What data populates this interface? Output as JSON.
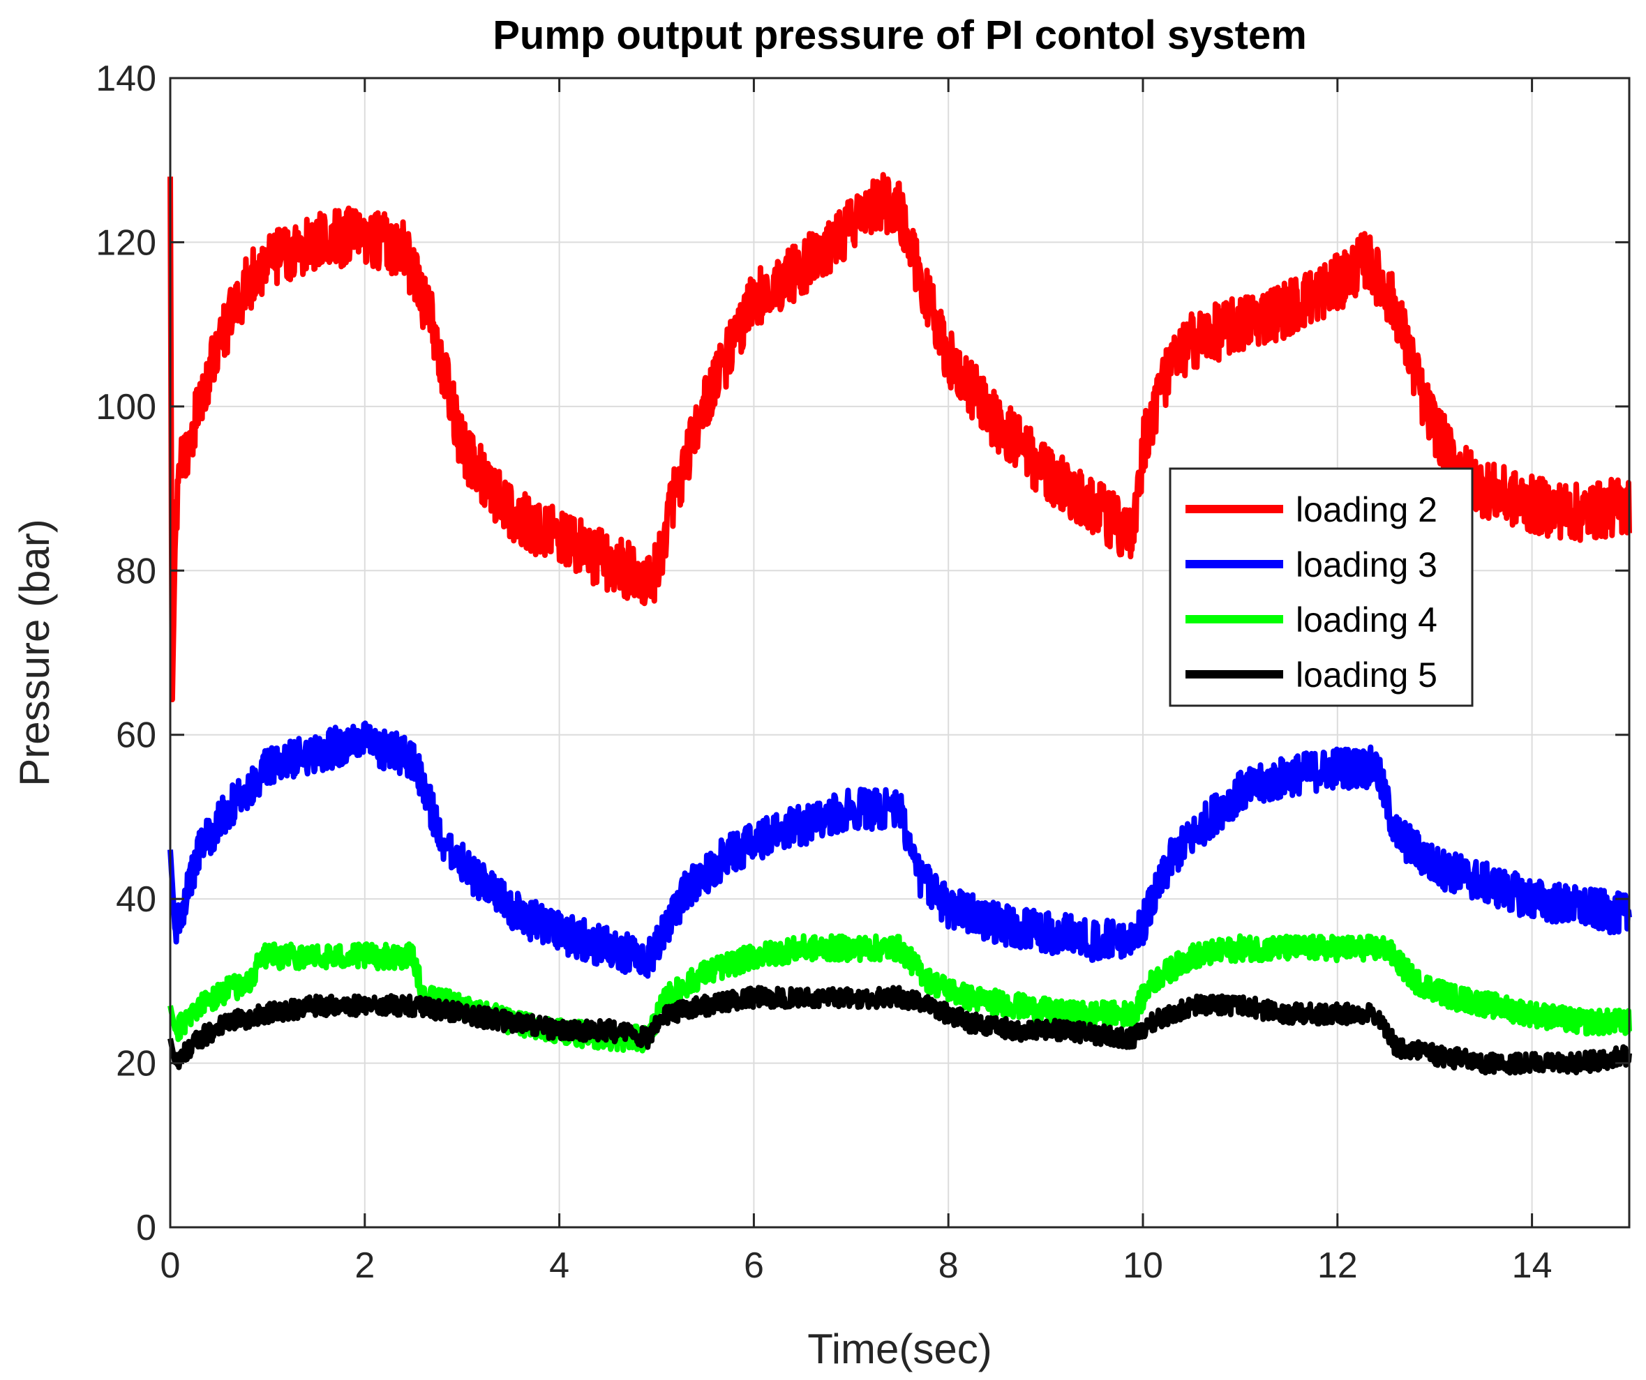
{
  "chart_data": {
    "type": "line",
    "title": "Pump output pressure of PI contol system",
    "xlabel": "Time(sec)",
    "ylabel": "Pressure (bar)",
    "xlim": [
      0,
      15
    ],
    "ylim": [
      0,
      140
    ],
    "xticks": [
      0,
      2,
      4,
      6,
      8,
      10,
      12,
      14
    ],
    "yticks": [
      0,
      20,
      40,
      60,
      80,
      100,
      120,
      140
    ],
    "xtick_labels": [
      "0",
      "2",
      "4",
      "6",
      "8",
      "10",
      "12",
      "14"
    ],
    "ytick_labels": [
      "0",
      "20",
      "40",
      "60",
      "80",
      "100",
      "120",
      "140"
    ],
    "grid": true,
    "legend_position": "right",
    "series": [
      {
        "name": "loading 2",
        "color": "#ff0000",
        "noise": 3.5,
        "x": [
          0,
          0.02,
          0.05,
          0.1,
          0.3,
          0.5,
          0.8,
          1.0,
          1.5,
          2.0,
          2.4,
          2.7,
          3.0,
          3.5,
          4.0,
          4.5,
          4.9,
          5.0,
          5.2,
          5.5,
          5.8,
          6.0,
          6.5,
          7.0,
          7.3,
          7.5,
          7.7,
          8.0,
          8.5,
          9.0,
          9.5,
          9.9,
          10.0,
          10.2,
          10.5,
          11.0,
          11.5,
          12.0,
          12.3,
          12.6,
          12.9,
          13.2,
          13.5,
          14.0,
          14.5,
          15.0
        ],
        "y": [
          128,
          64,
          84,
          92,
          100,
          108,
          115,
          118,
          120,
          121,
          119,
          110,
          95,
          87,
          84,
          81,
          79,
          80,
          90,
          100,
          108,
          113,
          117,
          122,
          125,
          124,
          116,
          106,
          98,
          92,
          88,
          84,
          95,
          103,
          108,
          110,
          112,
          115,
          118,
          112,
          100,
          93,
          90,
          88,
          87,
          88
        ]
      },
      {
        "name": "loading 3",
        "color": "#0000ff",
        "noise": 2.5,
        "x": [
          0,
          0.05,
          0.3,
          0.6,
          1.0,
          1.5,
          2.0,
          2.5,
          2.8,
          3.2,
          3.6,
          4.0,
          4.5,
          4.9,
          5.0,
          5.3,
          5.7,
          6.0,
          6.5,
          7.0,
          7.5,
          7.7,
          8.0,
          8.5,
          9.0,
          9.5,
          9.9,
          10.0,
          10.3,
          10.7,
          11.0,
          11.5,
          12.0,
          12.4,
          12.6,
          13.0,
          13.5,
          14.0,
          14.5,
          15.0
        ],
        "y": [
          46,
          36,
          46,
          51,
          56,
          58,
          59,
          57,
          47,
          42,
          38,
          36,
          34,
          33,
          34,
          41,
          45,
          47,
          49,
          51,
          51,
          43,
          39,
          37,
          36,
          35,
          35,
          37,
          45,
          50,
          53,
          55,
          56,
          56,
          48,
          44,
          42,
          40,
          39,
          38
        ]
      },
      {
        "name": "loading 4",
        "color": "#00ff00",
        "noise": 1.5,
        "x": [
          0,
          0.05,
          0.3,
          0.6,
          0.85,
          0.9,
          1.5,
          2.0,
          2.5,
          2.6,
          3.0,
          3.5,
          4.0,
          4.5,
          4.9,
          5.1,
          5.5,
          6.0,
          6.5,
          7.0,
          7.5,
          7.8,
          8.2,
          8.7,
          9.2,
          9.9,
          10.1,
          10.5,
          11.0,
          11.5,
          12.0,
          12.5,
          12.8,
          13.2,
          13.6,
          14.0,
          14.5,
          15.0
        ],
        "y": [
          27,
          24,
          27,
          29,
          30,
          33,
          33,
          33,
          33,
          28,
          27,
          25,
          24,
          23,
          23,
          28,
          31,
          33,
          34,
          34,
          34,
          30,
          28,
          27,
          26,
          26,
          30,
          33,
          34,
          34,
          34,
          34,
          30,
          28,
          27,
          26,
          25,
          25
        ]
      },
      {
        "name": "loading 5",
        "color": "#000000",
        "noise": 1.2,
        "x": [
          0,
          0.05,
          0.3,
          0.6,
          1.0,
          1.5,
          2.0,
          2.5,
          3.0,
          3.5,
          4.0,
          4.5,
          4.9,
          5.1,
          5.5,
          6.0,
          6.5,
          7.0,
          7.5,
          7.8,
          8.2,
          8.7,
          9.2,
          9.9,
          10.1,
          10.5,
          11.0,
          11.5,
          12.0,
          12.4,
          12.6,
          13.0,
          13.5,
          14.0,
          14.5,
          15.0
        ],
        "y": [
          23,
          20,
          23,
          25,
          26,
          27,
          27,
          27,
          26,
          25,
          24,
          24,
          23,
          26,
          27,
          28,
          28,
          28,
          28,
          27,
          25,
          24,
          24,
          23,
          25,
          27,
          27,
          26,
          26,
          26,
          22,
          21,
          20,
          20,
          20,
          21
        ]
      }
    ]
  }
}
